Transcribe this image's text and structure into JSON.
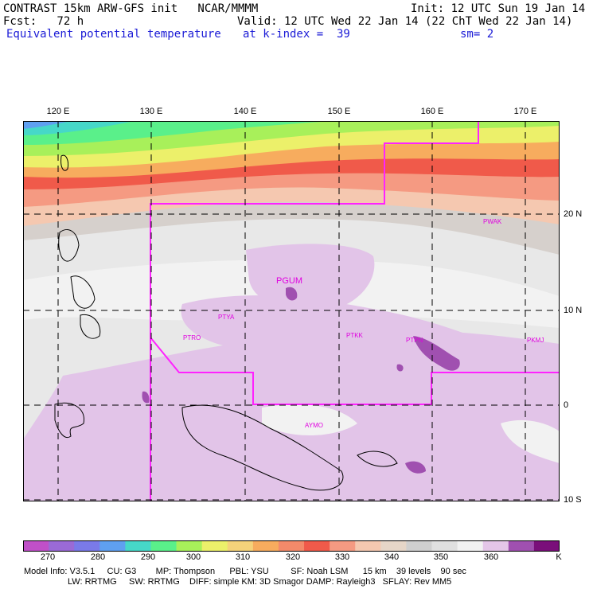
{
  "header": {
    "line1_left": "CONTRAST 15km ARW-GFS init   NCAR/MMMM",
    "line1_right": "Init: 12 UTC Sun 19 Jan 14",
    "line2_left": "Fcst:   72 h",
    "line2_right": "Valid: 12 UTC Wed 22 Jan 14 (22 ChT Wed 22 Jan 14)",
    "line3_left": "Equivalent potential temperature",
    "line3_mid": "at k-index =  39",
    "line3_right": "sm= 2"
  },
  "map": {
    "lon_labels": [
      "120 E",
      "130 E",
      "140 E",
      "150 E",
      "160 E",
      "170 E"
    ],
    "lat_labels": [
      "20 N",
      "10 N",
      "0",
      "10 S"
    ],
    "stations": [
      "PGUM",
      "PTYA",
      "PTRO",
      "PTKK",
      "PTPN",
      "PKMJ",
      "PWAK",
      "AYMO"
    ]
  },
  "colorbar": {
    "units": "K",
    "labels": [
      "270",
      "280",
      "290",
      "300",
      "310",
      "320",
      "330",
      "340",
      "350",
      "360"
    ],
    "colors": [
      "#c050c8",
      "#9a6ad6",
      "#7a7ae8",
      "#5fa0f0",
      "#46d8c8",
      "#5af08a",
      "#a8f05a",
      "#ecf06a",
      "#f5d27a",
      "#f7ac5e",
      "#f38a6a",
      "#f05a4a",
      "#f59a82",
      "#f5c8b0",
      "#e6d6c8",
      "#cfcfcf",
      "#e0e0e0",
      "#f2f2f2",
      "#e4c6e8",
      "#a050b0",
      "#7a0f7a"
    ]
  },
  "model_info": {
    "line1": "Model Info: V3.5.1     CU: G3        MP: Thompson      PBL: YSU         SF: Noah LSM      15 km    39 levels    90 sec",
    "line2": "                  LW: RRTMG     SW: RRTMG    DIFF: simple KM: 3D Smagor DAMP: Rayleigh3   SFLAY: Rev MM5"
  }
}
